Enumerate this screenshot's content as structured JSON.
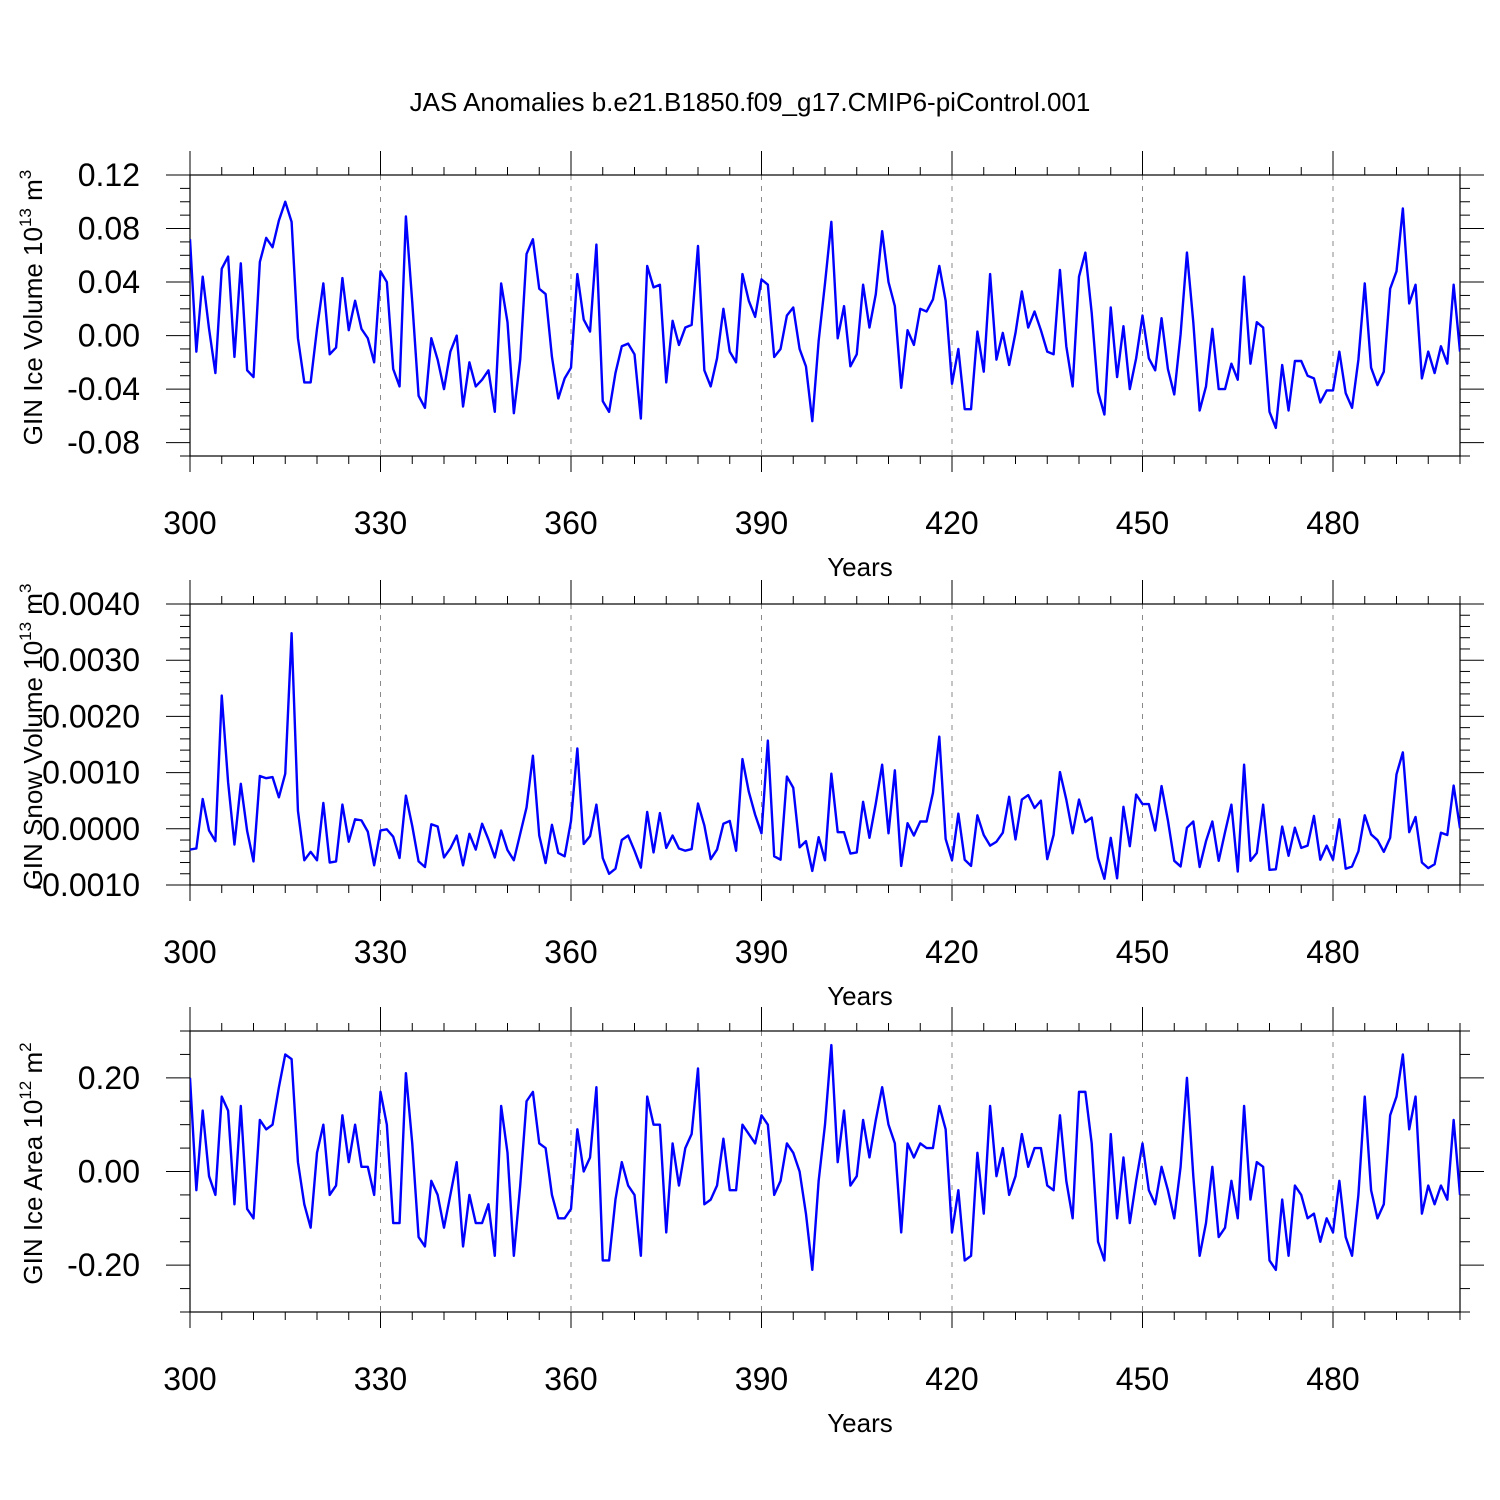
{
  "title": "JAS Anomalies b.e21.B1850.f09_g17.CMIP6-piControl.001",
  "colors": {
    "series": "#0000ff",
    "axis": "#000000",
    "grid": "#8a8a8a"
  },
  "chart_data": [
    {
      "type": "line",
      "ylabel": "GIN Ice Volume 10",
      "ylabel_sup": "13",
      "ylabel_unit": " m",
      "ylabel_unit_sup": "3",
      "xlabel": "Years",
      "xlim": [
        300,
        500
      ],
      "ylim": [
        -0.09,
        0.12
      ],
      "x_ticks": [
        300,
        330,
        360,
        390,
        420,
        450,
        480
      ],
      "y_ticks": [
        -0.08,
        -0.04,
        0.0,
        0.04,
        0.08,
        0.12
      ],
      "y_tick_labels": [
        "-0.08",
        "-0.04",
        "0.00",
        "0.04",
        "0.08",
        "0.12"
      ],
      "y_minor_step": 0.01,
      "x_start": 300,
      "values": [
        0.072,
        -0.012,
        0.044,
        0.005,
        -0.028,
        0.05,
        0.059,
        -0.016,
        0.054,
        -0.026,
        -0.031,
        0.055,
        0.073,
        0.066,
        0.086,
        0.1,
        0.085,
        -0.002,
        -0.035,
        -0.035,
        0.005,
        0.039,
        -0.014,
        -0.009,
        0.043,
        0.004,
        0.026,
        0.005,
        -0.002,
        -0.02,
        0.048,
        0.04,
        -0.025,
        -0.038,
        0.089,
        0.025,
        -0.045,
        -0.054,
        -0.002,
        -0.018,
        -0.04,
        -0.012,
        0.0,
        -0.053,
        -0.02,
        -0.038,
        -0.033,
        -0.026,
        -0.057,
        0.039,
        0.01,
        -0.058,
        -0.018,
        0.061,
        0.072,
        0.035,
        0.031,
        -0.016,
        -0.047,
        -0.032,
        -0.024,
        0.046,
        0.012,
        0.003,
        0.068,
        -0.049,
        -0.057,
        -0.028,
        -0.008,
        -0.006,
        -0.014,
        -0.062,
        0.052,
        0.036,
        0.038,
        -0.035,
        0.011,
        -0.007,
        0.006,
        0.008,
        0.067,
        -0.026,
        -0.038,
        -0.017,
        0.02,
        -0.012,
        -0.02,
        0.046,
        0.026,
        0.014,
        0.042,
        0.038,
        -0.016,
        -0.01,
        0.015,
        0.021,
        -0.01,
        -0.023,
        -0.064,
        -0.004,
        0.039,
        0.085,
        -0.002,
        0.022,
        -0.023,
        -0.014,
        0.038,
        0.006,
        0.031,
        0.078,
        0.04,
        0.022,
        -0.039,
        0.004,
        -0.007,
        0.02,
        0.018,
        0.027,
        0.052,
        0.026,
        -0.036,
        -0.01,
        -0.055,
        -0.055,
        0.003,
        -0.027,
        0.046,
        -0.018,
        0.002,
        -0.022,
        0.002,
        0.033,
        0.006,
        0.018,
        0.004,
        -0.012,
        -0.014,
        0.049,
        -0.008,
        -0.038,
        0.044,
        0.062,
        0.017,
        -0.042,
        -0.059,
        0.021,
        -0.031,
        0.007,
        -0.04,
        -0.017,
        0.015,
        -0.017,
        -0.026,
        0.013,
        -0.025,
        -0.044,
        0.001,
        0.062,
        0.01,
        -0.056,
        -0.038,
        0.005,
        -0.04,
        -0.04,
        -0.021,
        -0.033,
        0.044,
        -0.021,
        0.01,
        0.006,
        -0.057,
        -0.069,
        -0.022,
        -0.056,
        -0.019,
        -0.019,
        -0.03,
        -0.032,
        -0.05,
        -0.041,
        -0.041,
        -0.012,
        -0.043,
        -0.054,
        -0.018,
        0.039,
        -0.024,
        -0.037,
        -0.027,
        0.035,
        0.048,
        0.095,
        0.024,
        0.038,
        -0.032,
        -0.012,
        -0.028,
        -0.008,
        -0.021,
        0.038,
        -0.012
      ]
    },
    {
      "type": "line",
      "ylabel": "GIN Snow Volume 10",
      "ylabel_sup": "13",
      "ylabel_unit": " m",
      "ylabel_unit_sup": "3",
      "xlabel": "Years",
      "xlim": [
        300,
        500
      ],
      "ylim": [
        -0.001,
        0.004
      ],
      "x_ticks": [
        300,
        330,
        360,
        390,
        420,
        450,
        480
      ],
      "y_ticks": [
        -0.001,
        0.0,
        0.001,
        0.002,
        0.003,
        0.004
      ],
      "y_tick_labels": [
        "-0.0010",
        "0.0000",
        "0.0010",
        "0.0020",
        "0.0030",
        "0.0040"
      ],
      "y_minor_step": 0.0002,
      "x_start": 300,
      "values": [
        -0.00037,
        -0.00035,
        0.00053,
        -3e-05,
        -0.00022,
        0.00237,
        0.00083,
        -0.00028,
        0.0008,
        -4e-05,
        -0.00058,
        0.00094,
        0.0009,
        0.00092,
        0.00056,
        0.00098,
        0.00348,
        0.00032,
        -0.00056,
        -0.00041,
        -0.00056,
        0.00046,
        -0.0006,
        -0.00058,
        0.00043,
        -0.00023,
        0.00017,
        0.00015,
        -5e-05,
        -0.00065,
        -3e-05,
        -1e-05,
        -0.00014,
        -0.00052,
        0.00059,
        5e-05,
        -0.00058,
        -0.00068,
        8e-05,
        4e-05,
        -0.00051,
        -0.00035,
        -0.00012,
        -0.00065,
        -9e-05,
        -0.00037,
        9e-05,
        -0.00019,
        -0.00051,
        -3e-05,
        -0.00038,
        -0.00056,
        -9e-05,
        0.00038,
        0.0013,
        -0.00012,
        -0.00061,
        7e-05,
        -0.00043,
        -0.00049,
        0.00014,
        0.00143,
        -0.00027,
        -0.00013,
        0.00043,
        -0.00052,
        -0.0008,
        -0.00071,
        -0.0002,
        -0.00012,
        -0.00039,
        -0.00069,
        0.0003,
        -0.00042,
        0.00028,
        -0.00034,
        -0.00012,
        -0.00035,
        -0.00039,
        -0.00036,
        0.00045,
        6e-05,
        -0.00054,
        -0.00037,
        9e-05,
        0.00014,
        -0.00039,
        0.00124,
        0.00066,
        0.00025,
        -8e-05,
        0.00157,
        -0.00049,
        -0.00055,
        0.00093,
        0.00073,
        -0.00033,
        -0.00022,
        -0.00075,
        -0.00015,
        -0.00056,
        0.00098,
        -6e-05,
        -6e-05,
        -0.00044,
        -0.00042,
        0.00048,
        -0.00016,
        0.00045,
        0.00114,
        -8e-05,
        0.00104,
        -0.00066,
        0.0001,
        -0.00012,
        0.00013,
        0.00013,
        0.00064,
        0.00164,
        -0.00018,
        -0.00056,
        0.00027,
        -0.00055,
        -0.00066,
        0.00024,
        -0.00011,
        -0.0003,
        -0.00023,
        -7e-05,
        0.00057,
        -0.00019,
        0.00052,
        0.0006,
        0.00037,
        0.0005,
        -0.00054,
        -0.00011,
        0.00101,
        0.00052,
        -8e-05,
        0.00052,
        0.00012,
        0.0002,
        -0.00052,
        -0.00089,
        -0.00016,
        -0.00088,
        0.00039,
        -0.00031,
        0.00061,
        0.00044,
        0.00044,
        -3e-05,
        0.00076,
        0.00015,
        -0.00057,
        -0.00067,
        2e-05,
        0.00013,
        -0.00068,
        -0.00022,
        0.00013,
        -0.00057,
        -6e-05,
        0.00043,
        -0.00076,
        0.00114,
        -0.00057,
        -0.00043,
        0.00043,
        -0.00073,
        -0.00072,
        4e-05,
        -0.00048,
        2e-05,
        -0.00034,
        -0.0003,
        0.00023,
        -0.00055,
        -0.0003,
        -0.00055,
        0.00017,
        -0.00071,
        -0.00067,
        -0.0004,
        0.00024,
        -0.0001,
        -0.0002,
        -0.00041,
        -0.00016,
        0.00097,
        0.00136,
        -6e-05,
        0.00021,
        -0.0006,
        -0.0007,
        -0.00063,
        -7e-05,
        -0.00011,
        0.00077,
        1e-05
      ]
    },
    {
      "type": "line",
      "ylabel": "GIN Ice Area 10",
      "ylabel_sup": "12",
      "ylabel_unit": " m",
      "ylabel_unit_sup": "2",
      "xlabel": "Years",
      "xlim": [
        300,
        500
      ],
      "ylim": [
        -0.3,
        0.3
      ],
      "x_ticks": [
        300,
        330,
        360,
        390,
        420,
        450,
        480
      ],
      "y_ticks": [
        -0.2,
        0.0,
        0.2
      ],
      "y_tick_labels": [
        "-0.20",
        "0.00",
        "0.20"
      ],
      "y_minor_step": 0.05,
      "x_start": 300,
      "values": [
        0.2,
        -0.04,
        0.13,
        -0.01,
        -0.05,
        0.16,
        0.13,
        -0.07,
        0.14,
        -0.08,
        -0.1,
        0.11,
        0.09,
        0.1,
        0.18,
        0.25,
        0.24,
        0.02,
        -0.07,
        -0.12,
        0.04,
        0.1,
        -0.05,
        -0.03,
        0.12,
        0.02,
        0.1,
        0.01,
        0.01,
        -0.05,
        0.17,
        0.1,
        -0.11,
        -0.11,
        0.21,
        0.06,
        -0.14,
        -0.16,
        -0.02,
        -0.05,
        -0.12,
        -0.05,
        0.02,
        -0.16,
        -0.05,
        -0.11,
        -0.11,
        -0.07,
        -0.18,
        0.14,
        0.04,
        -0.18,
        -0.03,
        0.15,
        0.17,
        0.06,
        0.05,
        -0.05,
        -0.1,
        -0.1,
        -0.08,
        0.09,
        0.0,
        0.03,
        0.18,
        -0.19,
        -0.19,
        -0.06,
        0.02,
        -0.03,
        -0.05,
        -0.18,
        0.16,
        0.1,
        0.1,
        -0.13,
        0.06,
        -0.03,
        0.05,
        0.08,
        0.22,
        -0.07,
        -0.06,
        -0.03,
        0.07,
        -0.04,
        -0.04,
        0.1,
        0.08,
        0.06,
        0.12,
        0.1,
        -0.05,
        -0.02,
        0.06,
        0.04,
        0.0,
        -0.09,
        -0.21,
        -0.02,
        0.1,
        0.27,
        0.02,
        0.13,
        -0.03,
        -0.01,
        0.11,
        0.03,
        0.11,
        0.18,
        0.1,
        0.06,
        -0.13,
        0.06,
        0.03,
        0.06,
        0.05,
        0.05,
        0.14,
        0.09,
        -0.13,
        -0.04,
        -0.19,
        -0.18,
        0.04,
        -0.09,
        0.14,
        -0.01,
        0.05,
        -0.05,
        -0.01,
        0.08,
        0.01,
        0.05,
        0.05,
        -0.03,
        -0.04,
        0.12,
        -0.02,
        -0.1,
        0.17,
        0.17,
        0.06,
        -0.15,
        -0.19,
        0.08,
        -0.1,
        0.03,
        -0.11,
        -0.02,
        0.06,
        -0.04,
        -0.07,
        0.01,
        -0.04,
        -0.1,
        0.01,
        0.2,
        -0.01,
        -0.18,
        -0.11,
        0.01,
        -0.14,
        -0.12,
        -0.02,
        -0.1,
        0.14,
        -0.06,
        0.02,
        0.01,
        -0.19,
        -0.21,
        -0.06,
        -0.18,
        -0.03,
        -0.05,
        -0.1,
        -0.09,
        -0.15,
        -0.1,
        -0.13,
        -0.02,
        -0.14,
        -0.18,
        -0.05,
        0.16,
        -0.04,
        -0.1,
        -0.07,
        0.12,
        0.16,
        0.25,
        0.09,
        0.16,
        -0.09,
        -0.03,
        -0.07,
        -0.03,
        -0.06,
        0.11,
        -0.05
      ]
    }
  ]
}
